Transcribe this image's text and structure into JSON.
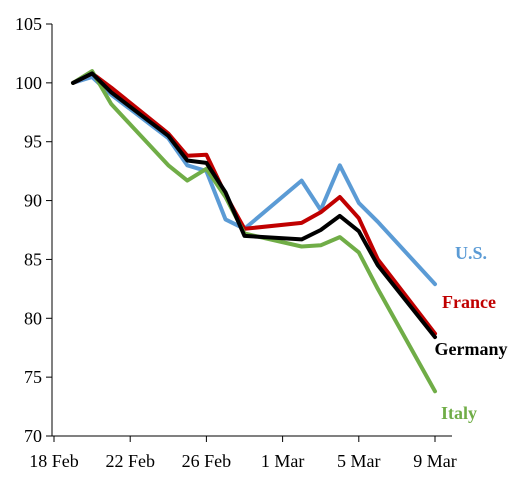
{
  "chart_data": {
    "type": "line",
    "title": "",
    "xlabel": "",
    "ylabel": "",
    "ylim": [
      70,
      105
    ],
    "y_ticks": [
      70,
      75,
      80,
      85,
      90,
      95,
      100,
      105
    ],
    "x_ticks": [
      {
        "date": "2020-02-18",
        "label": "18 Feb"
      },
      {
        "date": "2020-02-22",
        "label": "22 Feb"
      },
      {
        "date": "2020-02-26",
        "label": "26 Feb"
      },
      {
        "date": "2020-03-01",
        "label": "1 Mar"
      },
      {
        "date": "2020-03-05",
        "label": "5 Mar"
      },
      {
        "date": "2020-03-09",
        "label": "9 Mar"
      }
    ],
    "x": [
      "2020-02-19",
      "2020-02-20",
      "2020-02-21",
      "2020-02-24",
      "2020-02-25",
      "2020-02-26",
      "2020-02-27",
      "2020-02-28",
      "2020-03-02",
      "2020-03-03",
      "2020-03-04",
      "2020-03-05",
      "2020-03-06",
      "2020-03-09"
    ],
    "grid": false,
    "series": [
      {
        "name": "U.S.",
        "color": "#5b9bd5",
        "values": [
          100.0,
          100.5,
          99.0,
          95.3,
          93.0,
          92.5,
          88.4,
          87.6,
          91.7,
          89.2,
          93.0,
          89.8,
          88.2,
          82.9
        ]
      },
      {
        "name": "France",
        "color": "#c00000",
        "values": [
          100.0,
          100.8,
          99.6,
          95.7,
          93.8,
          93.9,
          90.5,
          87.6,
          88.1,
          89.0,
          90.3,
          88.5,
          85.0,
          78.7
        ]
      },
      {
        "name": "Germany",
        "color": "#000000",
        "values": [
          100.0,
          100.8,
          99.2,
          95.5,
          93.4,
          93.2,
          90.7,
          87.0,
          86.7,
          87.5,
          88.7,
          87.4,
          84.5,
          78.4
        ]
      },
      {
        "name": "Italy",
        "color": "#70ad47",
        "values": [
          100.0,
          101.0,
          98.2,
          93.0,
          91.7,
          92.7,
          90.3,
          87.2,
          86.1,
          86.2,
          86.9,
          85.6,
          82.5,
          73.8
        ]
      }
    ]
  }
}
